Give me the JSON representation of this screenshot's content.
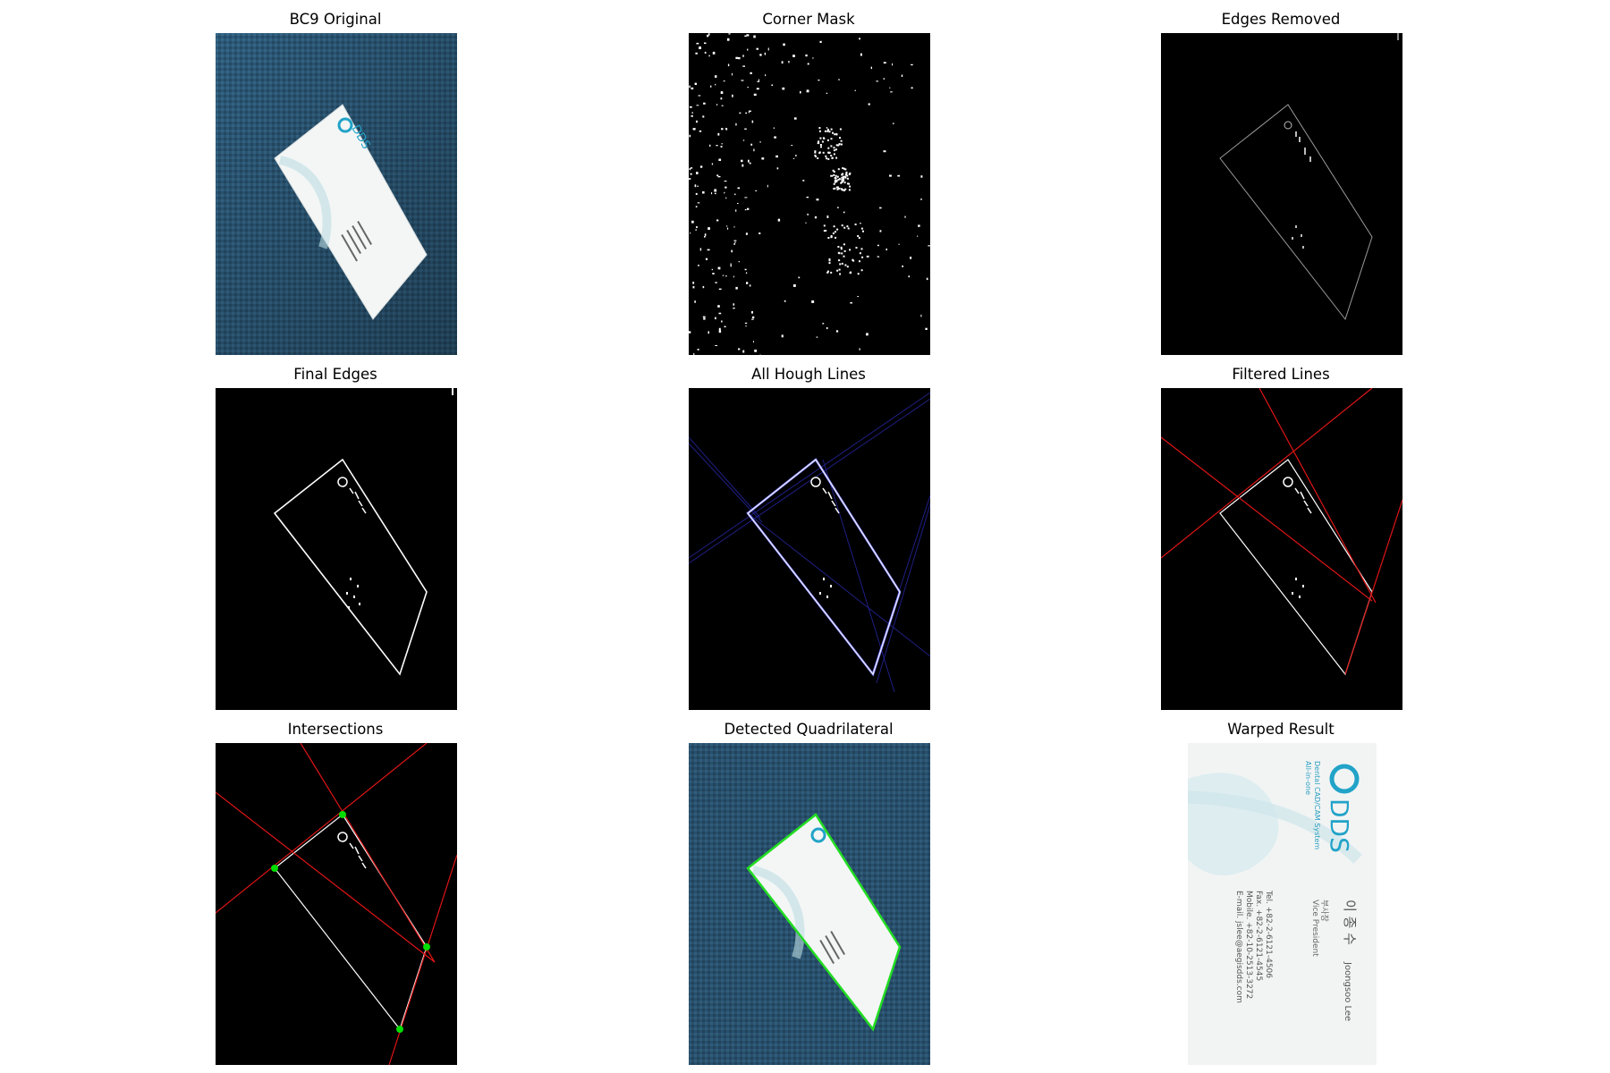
{
  "figure": {
    "panels": [
      {
        "id": "p1",
        "title": "BC9 Original"
      },
      {
        "id": "p2",
        "title": "Corner Mask"
      },
      {
        "id": "p3",
        "title": "Edges Removed"
      },
      {
        "id": "p4",
        "title": "Final Edges"
      },
      {
        "id": "p5",
        "title": "All Hough Lines"
      },
      {
        "id": "p6",
        "title": "Filtered Lines"
      },
      {
        "id": "p7",
        "title": "Intersections"
      },
      {
        "id": "p8",
        "title": "Detected Quadrilateral"
      },
      {
        "id": "p9",
        "title": "Warped Result"
      }
    ]
  },
  "card": {
    "logo": "DDS",
    "tagline_1": "All-in-one",
    "tagline_2": "Dental CAD/CAM System",
    "name_kr": "이 종 수",
    "name_en": "Joongsoo Lee",
    "title_kr": "부사장",
    "title_en": "Vice President",
    "tel": "Tel. +82-2-6121-4506",
    "fax": "Fax. +82-2-6121-4545",
    "mobile": "Mobile. +82-10-2513-3272",
    "email": "E-mail. jslee@aegisdds.com"
  },
  "colors": {
    "fabric": "#2f5f80",
    "hough_line": "#3b3bff",
    "filtered_line": "#e01515",
    "intersection": "#00dd00",
    "quad_outline": "#22dd22",
    "logo": "#22a3c8"
  }
}
